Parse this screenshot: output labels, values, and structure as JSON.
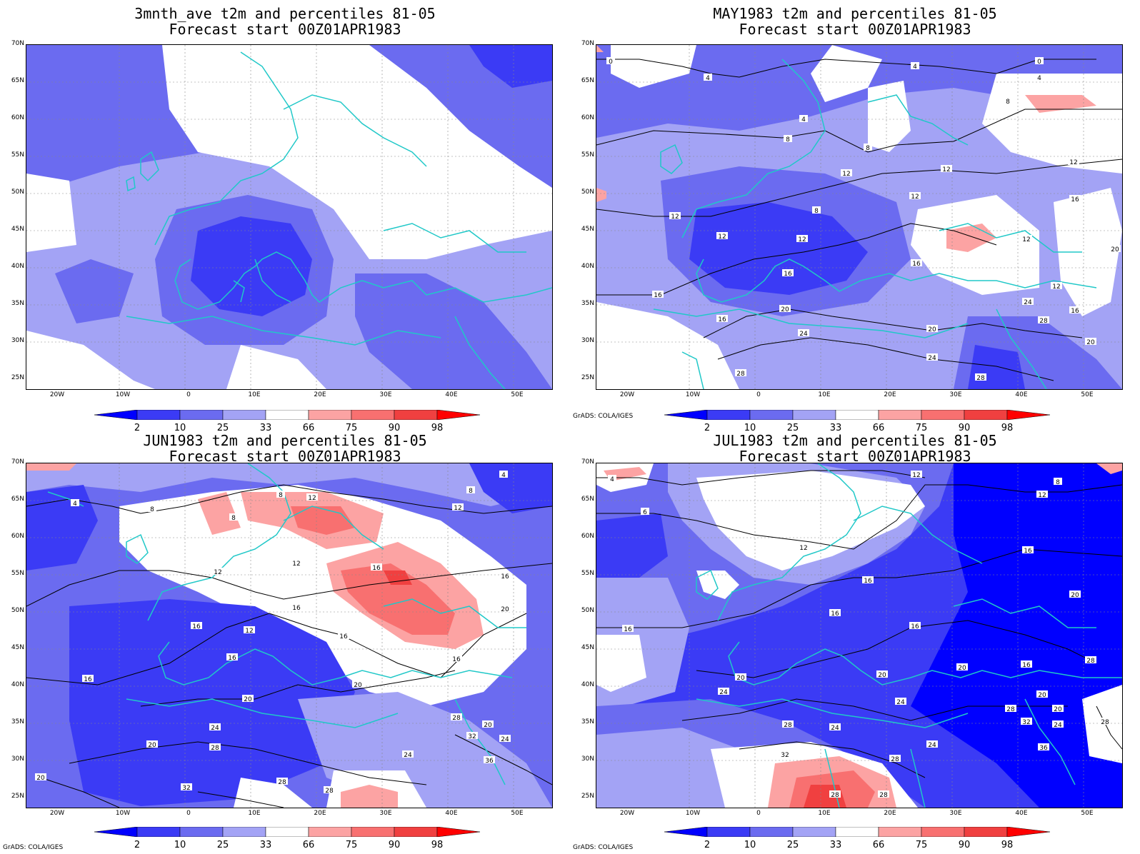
{
  "panels": [
    {
      "title_line1": "3mnth_ave t2m and percentiles 81-05",
      "title_line2": "Forecast start 00Z01APR1983",
      "credit": ""
    },
    {
      "title_line1": "MAY1983 t2m and percentiles 81-05",
      "title_line2": "Forecast start 00Z01APR1983",
      "credit": "GrADS: COLA/IGES"
    },
    {
      "title_line1": "JUN1983 t2m and percentiles 81-05",
      "title_line2": "Forecast start 00Z01APR1983",
      "credit": "GrADS: COLA/IGES"
    },
    {
      "title_line1": "JUL1983 t2m and percentiles 81-05",
      "title_line2": "Forecast start 00Z01APR1983",
      "credit": "GrADS: COLA/IGES"
    }
  ],
  "lat_labels": [
    "70N",
    "65N",
    "60N",
    "55N",
    "50N",
    "45N",
    "40N",
    "35N",
    "30N",
    "25N"
  ],
  "lon_labels": [
    "20W",
    "10W",
    "0",
    "10E",
    "20E",
    "30E",
    "40E",
    "50E"
  ],
  "colorbar": {
    "labels": [
      "2",
      "10",
      "25",
      "33",
      "66",
      "75",
      "90",
      "98"
    ],
    "colors": [
      "#0000ff",
      "#3b3bf5",
      "#6b6bf0",
      "#a3a3f5",
      "#ffffff",
      "#fca3a3",
      "#f87070",
      "#f04040",
      "#ff0000"
    ]
  },
  "colors": {
    "coast": "#20c8c8",
    "contour": "#000000",
    "grid": "#888888"
  }
}
